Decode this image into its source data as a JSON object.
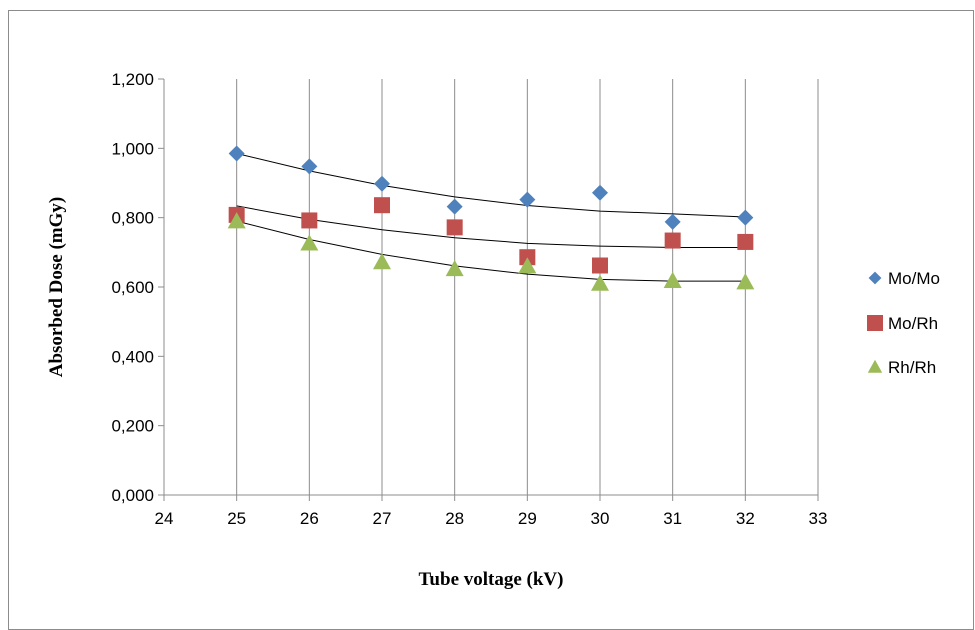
{
  "chart_data": {
    "type": "scatter",
    "title": "",
    "xlabel": "Tube voltage (kV)",
    "ylabel": "Absorbed Dose (mGy)",
    "xlim": [
      24,
      33
    ],
    "ylim": [
      0,
      1.2
    ],
    "xticks": [
      24,
      25,
      26,
      27,
      28,
      29,
      30,
      31,
      32,
      33
    ],
    "xtick_labels": [
      "24",
      "25",
      "26",
      "27",
      "28",
      "29",
      "30",
      "31",
      "32",
      "33"
    ],
    "yticks": [
      0,
      0.2,
      0.4,
      0.6,
      0.8,
      1.0,
      1.2
    ],
    "ytick_labels": [
      "0,000",
      "0,200",
      "0,400",
      "0,600",
      "0,800",
      "1,000",
      "1,200"
    ],
    "grid": "vertical",
    "legend_position": "right",
    "trendline": "polynomial",
    "x": [
      25,
      26,
      27,
      28,
      29,
      30,
      31,
      32
    ],
    "series": [
      {
        "name": "Mo/Mo",
        "marker": "diamond",
        "color": "#4f81bd",
        "values": [
          0.985,
          0.948,
          0.898,
          0.832,
          0.852,
          0.872,
          0.788,
          0.8
        ],
        "trend": [
          0.985,
          0.935,
          0.893,
          0.86,
          0.835,
          0.819,
          0.811,
          0.802
        ]
      },
      {
        "name": "Mo/Rh",
        "marker": "square",
        "color": "#c0504d",
        "values": [
          0.808,
          0.792,
          0.836,
          0.772,
          0.686,
          0.662,
          0.734,
          0.73
        ],
        "trend": [
          0.834,
          0.795,
          0.765,
          0.742,
          0.726,
          0.718,
          0.714,
          0.714
        ]
      },
      {
        "name": "Rh/Rh",
        "marker": "triangle",
        "color": "#9bbb59",
        "values": [
          0.79,
          0.726,
          0.672,
          0.652,
          0.66,
          0.61,
          0.618,
          0.614
        ],
        "trend": [
          0.79,
          0.737,
          0.694,
          0.661,
          0.637,
          0.622,
          0.617,
          0.617
        ]
      }
    ]
  }
}
